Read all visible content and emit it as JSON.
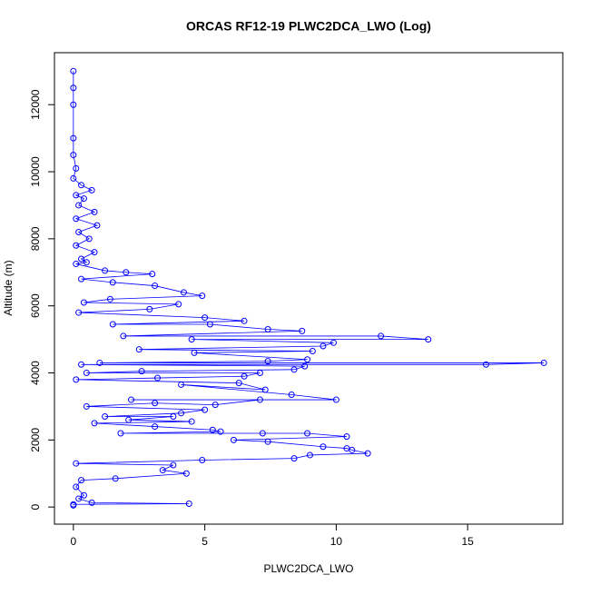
{
  "chart_data": {
    "type": "line",
    "title": "ORCAS RF12-19 PLWC2DCA_LWO (Log)",
    "x_label": "PLWC2DCA_LWO",
    "y_label": "Altitude (m)",
    "color": "#0000ff",
    "markers": true,
    "x": [
      0,
      0,
      0,
      0,
      0,
      0.1,
      0,
      0.3,
      0.7,
      0.1,
      0.4,
      0.2,
      0.8,
      0.1,
      0.9,
      0.2,
      0.6,
      0.1,
      0.8,
      0.3,
      0.5,
      0.1,
      1.2,
      2.0,
      3.0,
      0.3,
      1.5,
      3.1,
      4.2,
      4.9,
      1.4,
      0.4,
      4.0,
      2.9,
      0.2,
      5.0,
      6.5,
      1.5,
      5.2,
      7.4,
      8.7,
      1.9,
      11.7,
      13.5,
      4.5,
      9.9,
      9.5,
      2.5,
      9.1,
      4.6,
      8.9,
      7.4,
      1.0,
      17.9,
      15.7,
      0.3,
      8.8,
      8.4,
      2.6,
      0.5,
      7.1,
      6.5,
      3.2,
      0.1,
      6.3,
      7.3,
      4.1,
      8.3,
      10,
      2.2,
      7.1,
      5.4,
      3.1,
      0.5,
      5.0,
      4.1,
      1.2,
      3.8,
      2.1,
      4.5,
      0.8,
      3.1,
      5.3,
      5.6,
      1.8,
      7.2,
      8.9,
      10.4,
      6.1,
      7.4,
      9.5,
      10.4,
      10.6,
      11.2,
      9.0,
      8.4,
      4.9,
      0.1,
      3.8,
      3.4,
      4.3,
      1.6,
      0.3,
      0.1,
      0.4,
      0.2,
      0.7,
      4.4,
      0,
      0
    ],
    "values": [
      13000,
      12500,
      12000,
      11000,
      10500,
      10100,
      9800,
      9600,
      9450,
      9300,
      9200,
      9000,
      8800,
      8600,
      8400,
      8200,
      8000,
      7800,
      7600,
      7400,
      7300,
      7250,
      7050,
      7000,
      6950,
      6800,
      6700,
      6600,
      6400,
      6300,
      6200,
      6100,
      6050,
      5900,
      5800,
      5650,
      5550,
      5450,
      5450,
      5300,
      5250,
      5100,
      5100,
      5000,
      5000,
      4900,
      4800,
      4700,
      4650,
      4600,
      4400,
      4350,
      4300,
      4300,
      4250,
      4250,
      4200,
      4100,
      4050,
      4000,
      4000,
      3900,
      3850,
      3800,
      3700,
      3500,
      3650,
      3350,
      3200,
      3200,
      3200,
      3050,
      3100,
      3000,
      2900,
      2800,
      2700,
      2700,
      2600,
      2550,
      2500,
      2400,
      2300,
      2250,
      2200,
      2200,
      2200,
      2100,
      2000,
      1950,
      1800,
      1750,
      1700,
      1600,
      1550,
      1450,
      1400,
      1300,
      1250,
      1100,
      1000,
      850,
      800,
      600,
      350,
      250,
      130,
      100,
      80,
      50
    ],
    "xlim": [
      -0.72,
      18.62
    ],
    "ylim": [
      -510,
      13550
    ],
    "xticks": [
      0,
      5,
      10,
      15
    ],
    "yticks": [
      0,
      2000,
      4000,
      6000,
      8000,
      10000,
      12000
    ]
  }
}
